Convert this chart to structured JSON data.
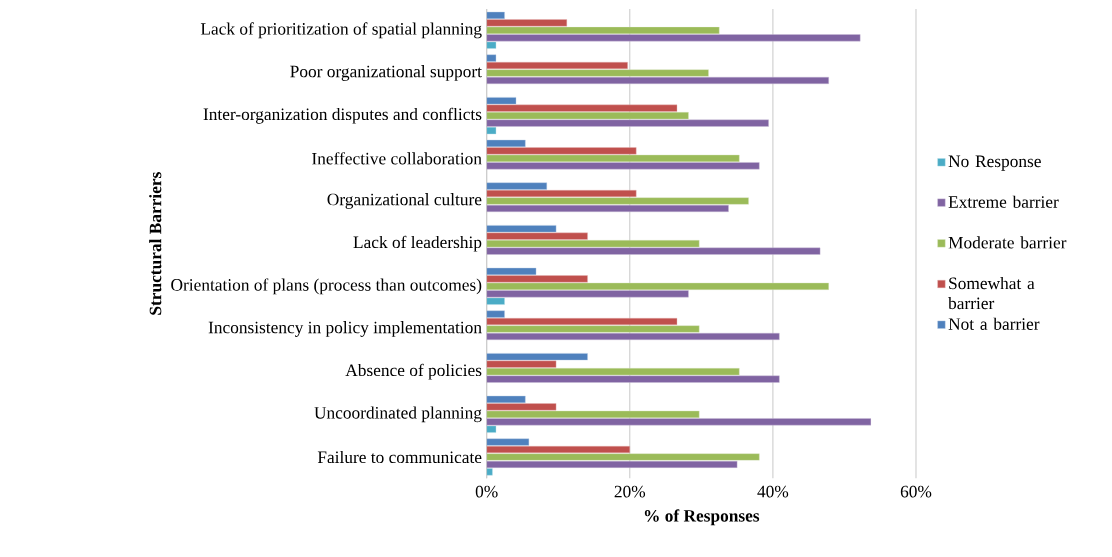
{
  "chart_data": {
    "type": "bar",
    "orientation": "horizontal",
    "xlabel": "% of Responses",
    "ylabel": "Structural Barriers",
    "categories": [
      "Lack of prioritization of spatial planning",
      "Poor organizational support",
      "Inter-organization disputes and conflicts",
      "Ineffective collaboration",
      "Organizational culture",
      "Lack of leadership",
      "Orientation of plans (process than outcomes)",
      "Inconsistency in policy implementation",
      "Absence of policies",
      "Uncoordinated planning",
      "Failure to communicate"
    ],
    "series": [
      {
        "name": "No Response",
        "color": "#4bacc6",
        "values": [
          1.3,
          null,
          1.3,
          null,
          null,
          null,
          2.5,
          null,
          null,
          1.3,
          0.8
        ]
      },
      {
        "name": "Extreme barrier",
        "color": "#8064a2",
        "values": [
          52.2,
          47.8,
          39.4,
          38.1,
          33.8,
          46.6,
          28.2,
          40.9,
          40.9,
          53.7,
          35.0
        ]
      },
      {
        "name": "Moderate barrier",
        "color": "#9bbb59",
        "values": [
          32.5,
          31.0,
          28.2,
          35.3,
          36.6,
          29.7,
          47.8,
          29.7,
          35.3,
          29.7,
          38.1
        ]
      },
      {
        "name": "Somewhat a barrier",
        "color": "#c0504d",
        "values": [
          11.2,
          19.7,
          26.6,
          20.9,
          20.9,
          14.1,
          14.1,
          26.6,
          9.7,
          9.7,
          20.0
        ]
      },
      {
        "name": "Not a barrier",
        "color": "#4f81bd",
        "values": [
          2.5,
          1.3,
          4.1,
          5.4,
          8.4,
          9.7,
          6.9,
          2.5,
          14.1,
          5.4,
          5.9
        ]
      }
    ],
    "xlim": [
      0,
      60
    ],
    "xticks": [
      {
        "value": 0,
        "label": "0%"
      },
      {
        "value": 20,
        "label": "20%"
      },
      {
        "value": 40,
        "label": "40%"
      },
      {
        "value": 60,
        "label": "60%"
      }
    ],
    "grid": "x",
    "legend": "right"
  }
}
